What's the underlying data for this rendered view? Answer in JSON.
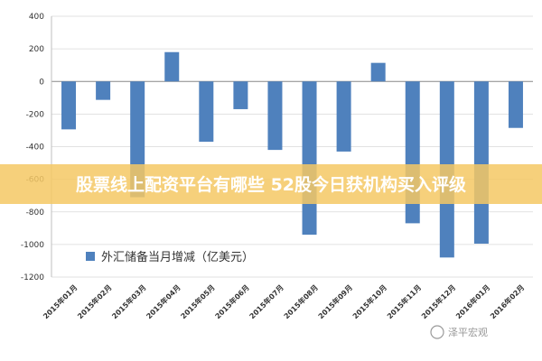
{
  "chart_data": {
    "type": "bar",
    "categories": [
      "2015年01月",
      "2015年02月",
      "2015年03月",
      "2015年04月",
      "2015年05月",
      "2015年06月",
      "2015年07月",
      "2015年08月",
      "2015年09月",
      "2015年10月",
      "2015年11月",
      "2015年12月",
      "2016年01月",
      "2016年02月"
    ],
    "series": [
      {
        "name": "外汇储备当月增减（亿美元）",
        "values": [
          -294,
          -113,
          -710,
          180,
          -370,
          -170,
          -420,
          -940,
          -430,
          114,
          -870,
          -1080,
          -995,
          -285
        ]
      }
    ],
    "yticks": [
      400,
      200,
      0,
      -200,
      -400,
      -600,
      -800,
      -1000,
      -1200
    ],
    "ylim": [
      -1200,
      400
    ],
    "grid": true,
    "legend_position": "bottom-left",
    "colors": {
      "bar": "#4f81bd",
      "axis": "#888888"
    }
  },
  "overlay": {
    "banner_text": "股票线上配资平台有哪些 52股今日获机构买入评级",
    "banner_color": "#f5c864",
    "watermark": "泽平宏观"
  }
}
